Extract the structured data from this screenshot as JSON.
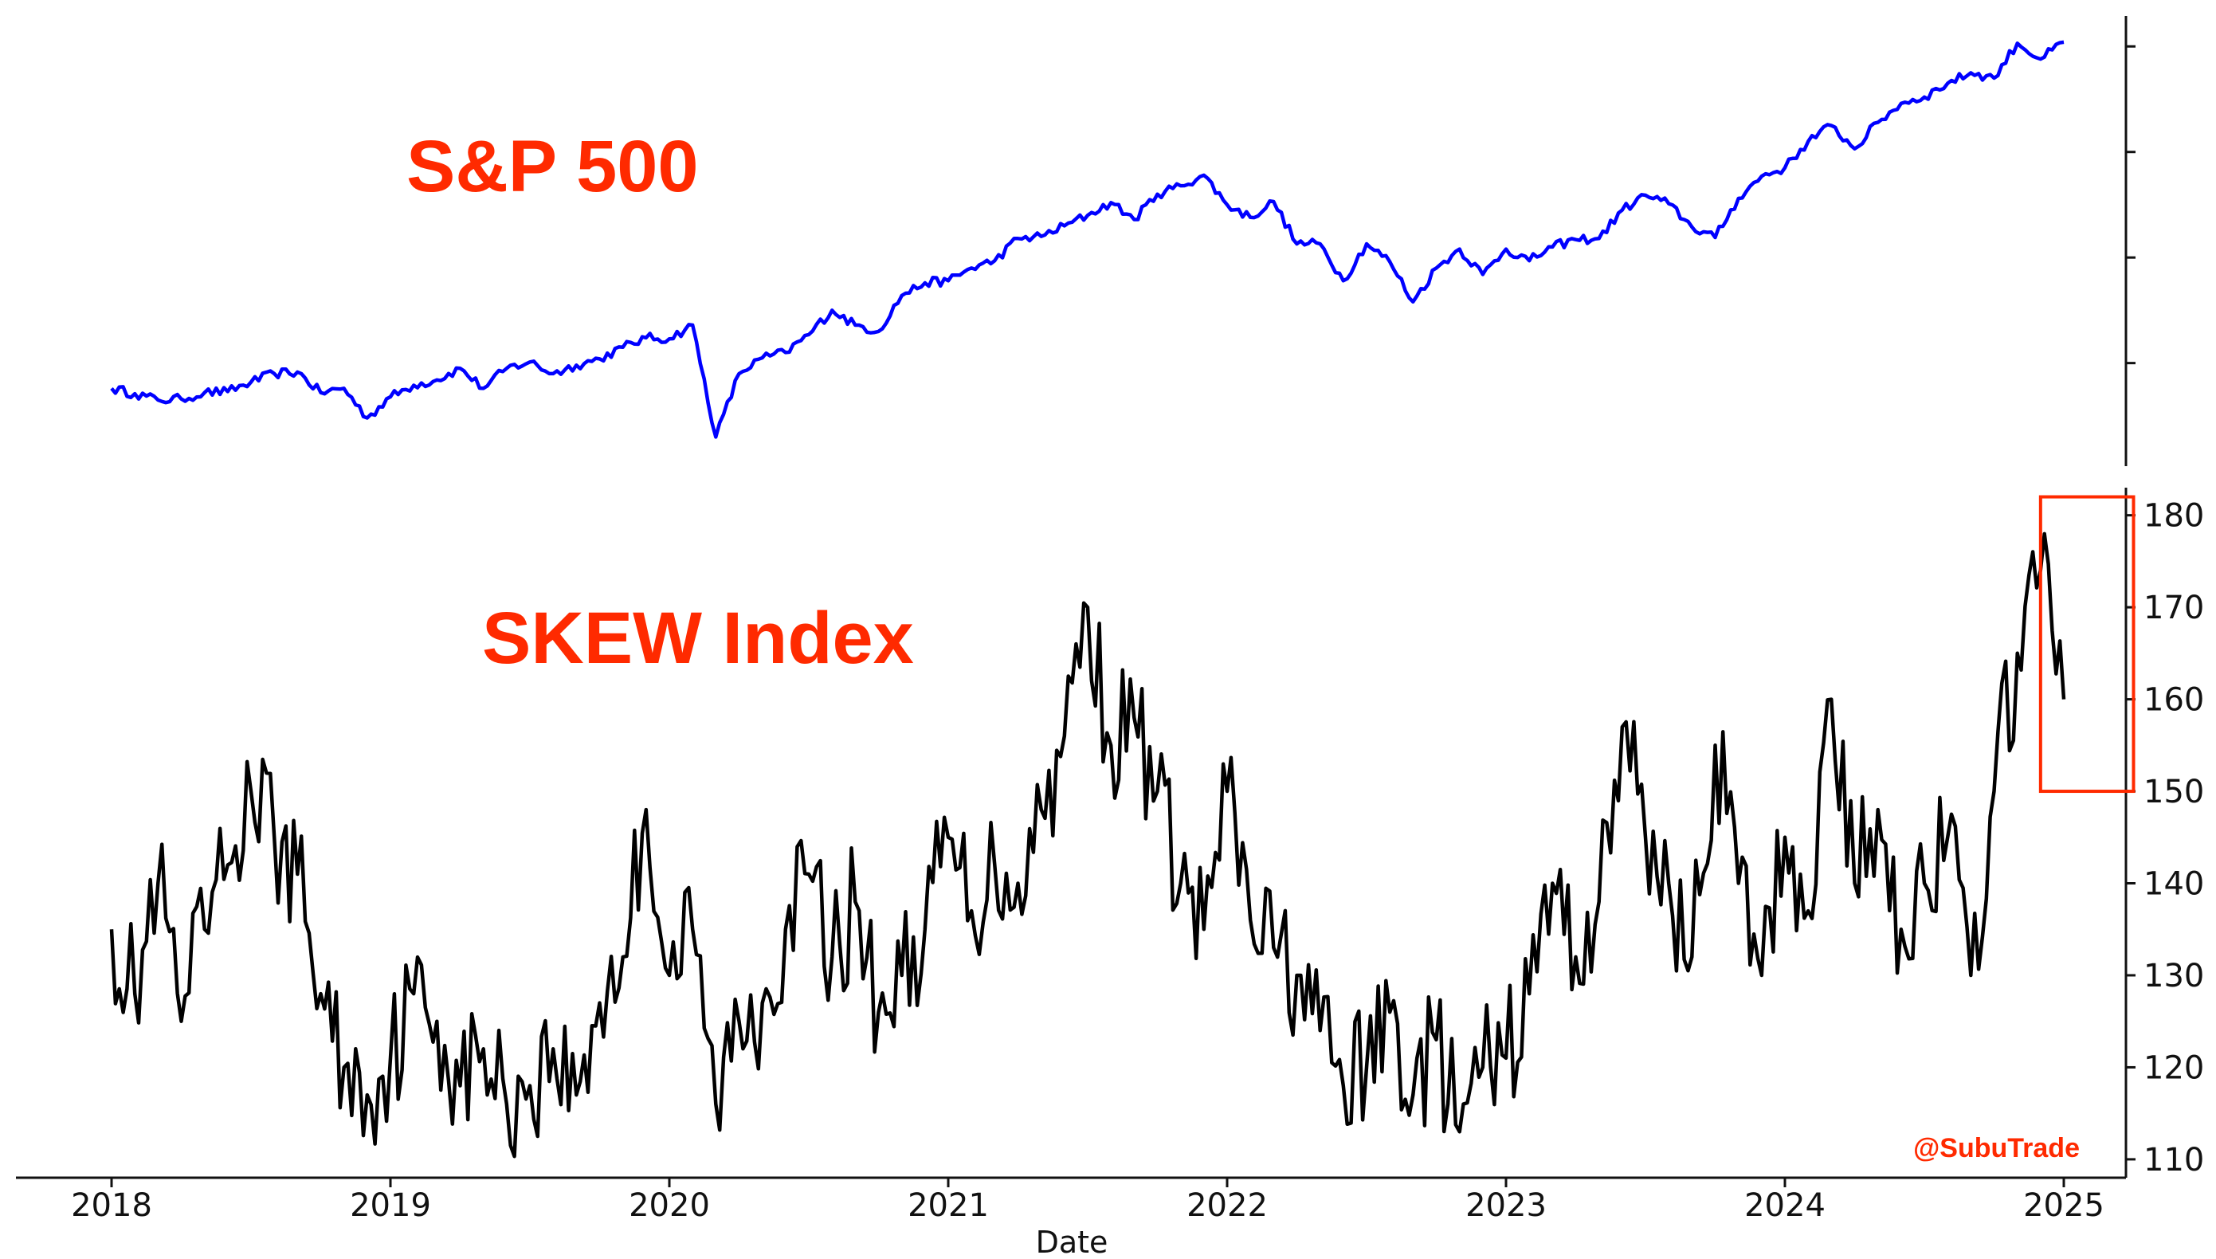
{
  "chart_data": [
    {
      "type": "line",
      "title": "S&P 500",
      "series": [
        {
          "name": "S&P 500",
          "color": "#0000ff",
          "x": [
            "2018-01",
            "2018-02",
            "2018-03",
            "2018-04",
            "2018-05",
            "2018-06",
            "2018-07",
            "2018-08",
            "2018-09",
            "2018-10",
            "2018-11",
            "2018-12",
            "2019-01",
            "2019-02",
            "2019-03",
            "2019-04",
            "2019-05",
            "2019-06",
            "2019-07",
            "2019-08",
            "2019-09",
            "2019-10",
            "2019-11",
            "2019-12",
            "2020-01",
            "2020-02",
            "2020-03",
            "2020-04",
            "2020-05",
            "2020-06",
            "2020-07",
            "2020-08",
            "2020-09",
            "2020-10",
            "2020-11",
            "2020-12",
            "2021-01",
            "2021-02",
            "2021-03",
            "2021-04",
            "2021-05",
            "2021-06",
            "2021-07",
            "2021-08",
            "2021-09",
            "2021-10",
            "2021-11",
            "2021-12",
            "2022-01",
            "2022-02",
            "2022-03",
            "2022-04",
            "2022-05",
            "2022-06",
            "2022-07",
            "2022-08",
            "2022-09",
            "2022-10",
            "2022-11",
            "2022-12",
            "2023-01",
            "2023-02",
            "2023-03",
            "2023-04",
            "2023-05",
            "2023-06",
            "2023-07",
            "2023-08",
            "2023-09",
            "2023-10",
            "2023-11",
            "2023-12",
            "2024-01",
            "2024-02",
            "2024-03",
            "2024-04",
            "2024-05",
            "2024-06",
            "2024-07",
            "2024-08",
            "2024-09",
            "2024-10",
            "2024-11",
            "2024-12",
            "2025-01"
          ],
          "values": [
            2760,
            2710,
            2650,
            2660,
            2720,
            2730,
            2820,
            2900,
            2915,
            2720,
            2760,
            2480,
            2680,
            2790,
            2840,
            2950,
            2760,
            2950,
            3010,
            2900,
            2980,
            3040,
            3150,
            3240,
            3230,
            3360,
            2300,
            2900,
            3050,
            3100,
            3270,
            3500,
            3360,
            3300,
            3640,
            3760,
            3780,
            3900,
            3970,
            4180,
            4200,
            4300,
            4400,
            4520,
            4360,
            4600,
            4680,
            4780,
            4500,
            4380,
            4530,
            4130,
            4130,
            3780,
            4130,
            3960,
            3580,
            3900,
            4080,
            3840,
            4080,
            3970,
            4100,
            4170,
            4180,
            4450,
            4590,
            4510,
            4290,
            4190,
            4560,
            4770,
            4850,
            5100,
            5250,
            5030,
            5280,
            5460,
            5520,
            5650,
            5750,
            5700,
            6030,
            5880,
            6040
          ]
        }
      ]
    },
    {
      "type": "line",
      "title": "SKEW Index",
      "xlabel": "Date",
      "ylabel": "",
      "ylim": [
        108,
        183
      ],
      "yticks": [
        110,
        120,
        130,
        140,
        150,
        160,
        170,
        180
      ],
      "xticks": [
        "2018",
        "2019",
        "2020",
        "2021",
        "2022",
        "2023",
        "2024",
        "2025"
      ],
      "highlight": {
        "label": "",
        "x_range": [
          "2024-12",
          "2025-04"
        ],
        "y_range": [
          150,
          182
        ],
        "color": "#ff2a00"
      },
      "series": [
        {
          "name": "SKEW Index",
          "color": "#000000",
          "x": [
            "2018-01",
            "2018-02",
            "2018-03",
            "2018-04",
            "2018-05",
            "2018-06",
            "2018-07",
            "2018-08",
            "2018-09",
            "2018-10",
            "2018-11",
            "2018-12",
            "2019-01",
            "2019-02",
            "2019-03",
            "2019-04",
            "2019-05",
            "2019-06",
            "2019-07",
            "2019-08",
            "2019-09",
            "2019-10",
            "2019-11",
            "2019-12",
            "2020-01",
            "2020-02",
            "2020-03",
            "2020-04",
            "2020-05",
            "2020-06",
            "2020-07",
            "2020-08",
            "2020-09",
            "2020-10",
            "2020-11",
            "2020-12",
            "2021-01",
            "2021-02",
            "2021-03",
            "2021-04",
            "2021-05",
            "2021-06",
            "2021-07",
            "2021-08",
            "2021-09",
            "2021-10",
            "2021-11",
            "2021-12",
            "2022-01",
            "2022-02",
            "2022-03",
            "2022-04",
            "2022-05",
            "2022-06",
            "2022-07",
            "2022-08",
            "2022-09",
            "2022-10",
            "2022-11",
            "2022-12",
            "2023-01",
            "2023-02",
            "2023-03",
            "2023-04",
            "2023-05",
            "2023-06",
            "2023-07",
            "2023-08",
            "2023-09",
            "2023-10",
            "2023-11",
            "2023-12",
            "2024-01",
            "2024-02",
            "2024-03",
            "2024-04",
            "2024-05",
            "2024-06",
            "2024-07",
            "2024-08",
            "2024-09",
            "2024-10",
            "2024-11",
            "2024-12",
            "2025-01"
          ],
          "values": [
            135,
            128,
            140,
            125,
            135,
            142,
            150,
            145,
            141,
            128,
            120,
            117,
            121,
            128,
            125,
            118,
            122,
            116,
            118,
            122,
            117,
            127,
            132,
            148,
            130,
            135,
            116,
            125,
            127,
            135,
            141,
            132,
            138,
            126,
            130,
            135,
            145,
            137,
            142,
            140,
            148,
            156,
            170,
            155,
            158,
            150,
            140,
            135,
            150,
            136,
            133,
            130,
            124,
            118,
            120,
            126,
            117,
            123,
            113,
            120,
            121,
            128,
            140,
            132,
            138,
            157,
            145,
            140,
            132,
            155,
            140,
            130,
            145,
            137,
            160,
            140,
            148,
            135,
            140,
            145,
            130,
            150,
            165,
            174,
            160
          ]
        }
      ]
    }
  ],
  "labels": {
    "spx_annotation": "S&P 500",
    "skew_annotation": "SKEW Index",
    "x_axis_title": "Date",
    "watermark": "@SubuTrade"
  },
  "colors": {
    "spx_line": "#0000ff",
    "skew_line": "#000000",
    "annotation": "#ff2a00",
    "axis": "#111111"
  }
}
